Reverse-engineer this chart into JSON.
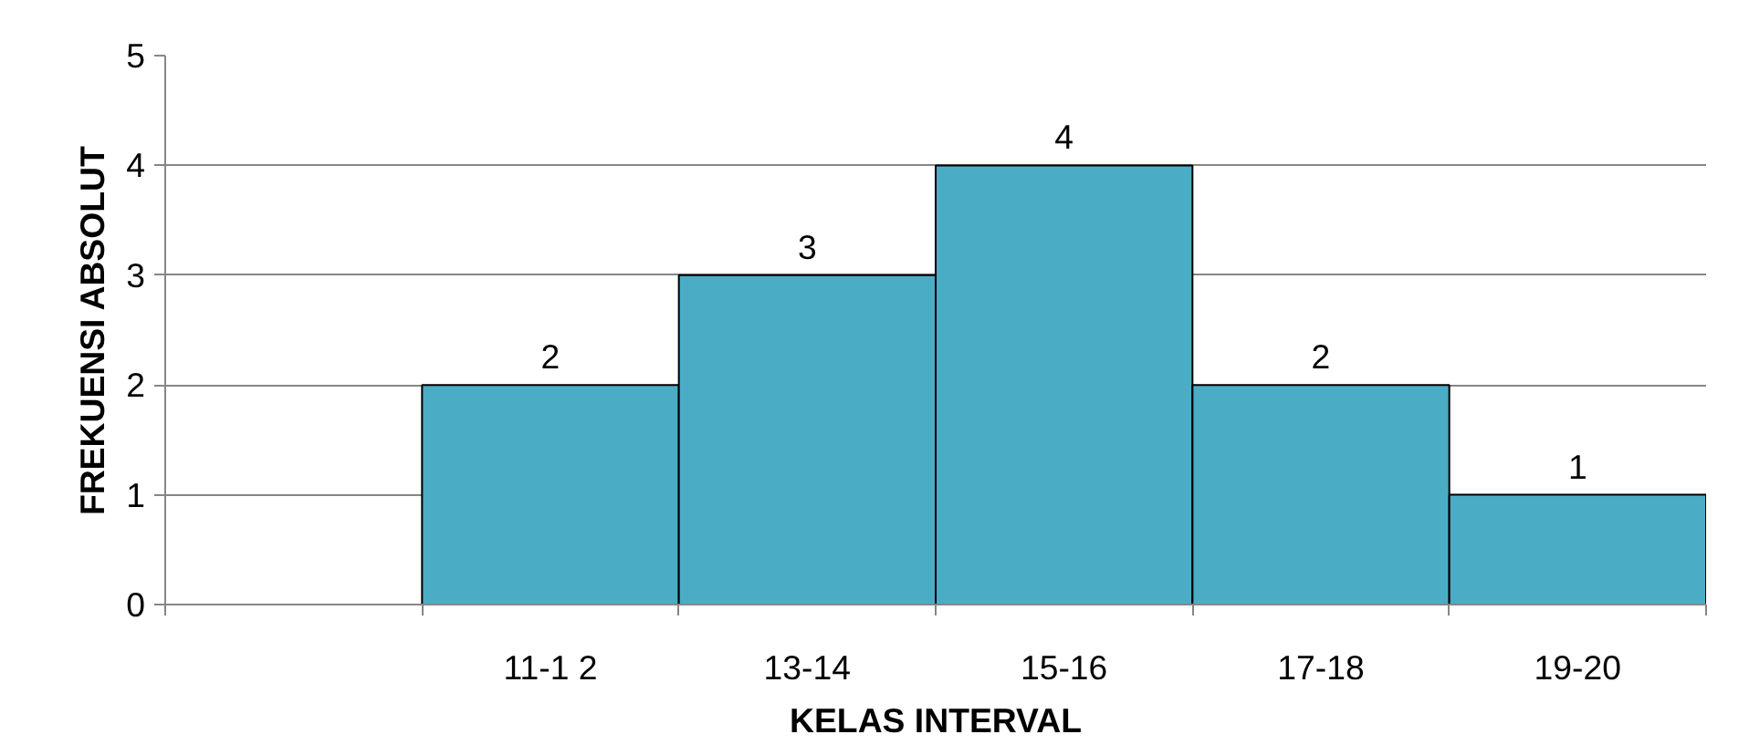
{
  "chart_data": {
    "type": "bar",
    "xlabel": "KELAS INTERVAL",
    "ylabel": "FREKUENSI ABSOLUT",
    "categories": [
      null,
      "11-1 2",
      "13-14",
      "15-16",
      "17-18",
      "19-20"
    ],
    "values": [
      null,
      2,
      3,
      4,
      2,
      1
    ],
    "color": "#4bacc6",
    "ylim": [
      0,
      5
    ],
    "yticks": [
      0,
      1,
      2,
      3,
      4,
      5
    ],
    "grid": "y",
    "data_labels": true
  }
}
